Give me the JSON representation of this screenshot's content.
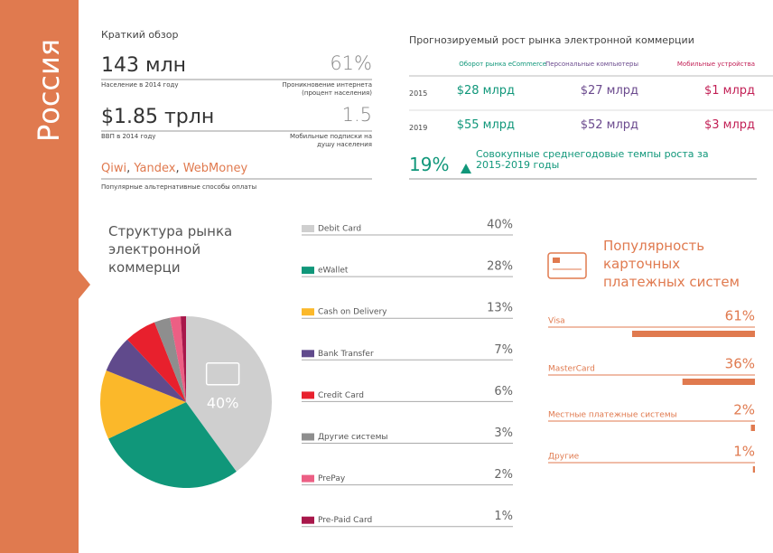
{
  "sidebar": {
    "title": "Россия"
  },
  "overview": {
    "title": "Краткий обзор",
    "stats": [
      {
        "value": "143 млн",
        "label": "Население в 2014 году",
        "side_value": "61%",
        "side_label": "Проникновение интернета (процент населения)"
      },
      {
        "value": "$1.85 трлн",
        "label": "ВВП в 2014 году",
        "side_value": "1.5",
        "side_label": "Мобильные подписки на душу населения"
      }
    ],
    "payments": [
      "Qiwi",
      "Yandex",
      "WebMoney"
    ],
    "payments_separator": ", ",
    "payments_label": "Популярные альтернативные способы оплаты"
  },
  "forecast": {
    "title": "Прогнозируемый рост рынка электронной коммерции",
    "columns": [
      {
        "name": "Оборот рынка eCommerce",
        "color": "#10977a"
      },
      {
        "name": "Персональные компьютеры",
        "color": "#6b4a8e"
      },
      {
        "name": "Мобильные устройства",
        "color": "#c21f55"
      }
    ],
    "rows": [
      {
        "year": "2015",
        "values": [
          "$28 млрд",
          "$27 млрд",
          "$1 млрд"
        ]
      },
      {
        "year": "2019",
        "values": [
          "$55 млрд",
          "$52 млрд",
          "$3 млрд"
        ]
      }
    ],
    "cagr": "19%",
    "cagr_text": [
      "Совокупные среднегодовые темпы роста за",
      "2015-2019 годы"
    ]
  },
  "chart_data": [
    {
      "type": "pie",
      "title": "Структура рынка электронной коммерци",
      "categories": [
        "Debit Card",
        "eWallet",
        "Cash on Delivery",
        "Bank Transfer",
        "Credit Card",
        "Другие системы",
        "PrePay",
        "Pre-Paid Card"
      ],
      "values": [
        40,
        28,
        13,
        7,
        6,
        3,
        2,
        1
      ],
      "value_labels": [
        "40%",
        "28%",
        "13%",
        "7%",
        "6%",
        "3%",
        "2%",
        "1%"
      ],
      "colors": [
        "#cfcfcf",
        "#10977a",
        "#fbb82a",
        "#604a8c",
        "#e8202d",
        "#8e8e8e",
        "#ec5f84",
        "#a8174a"
      ]
    },
    {
      "type": "bar",
      "title": "Популярность карточных платежных систем",
      "categories": [
        "Visa",
        "MasterCard",
        "Местные платежные системы",
        "Другие"
      ],
      "values": [
        61,
        36,
        2,
        1
      ],
      "value_labels": [
        "61%",
        "36%",
        "2%",
        "1%"
      ],
      "xlim": [
        0,
        100
      ],
      "color": "#e07a4f"
    }
  ]
}
